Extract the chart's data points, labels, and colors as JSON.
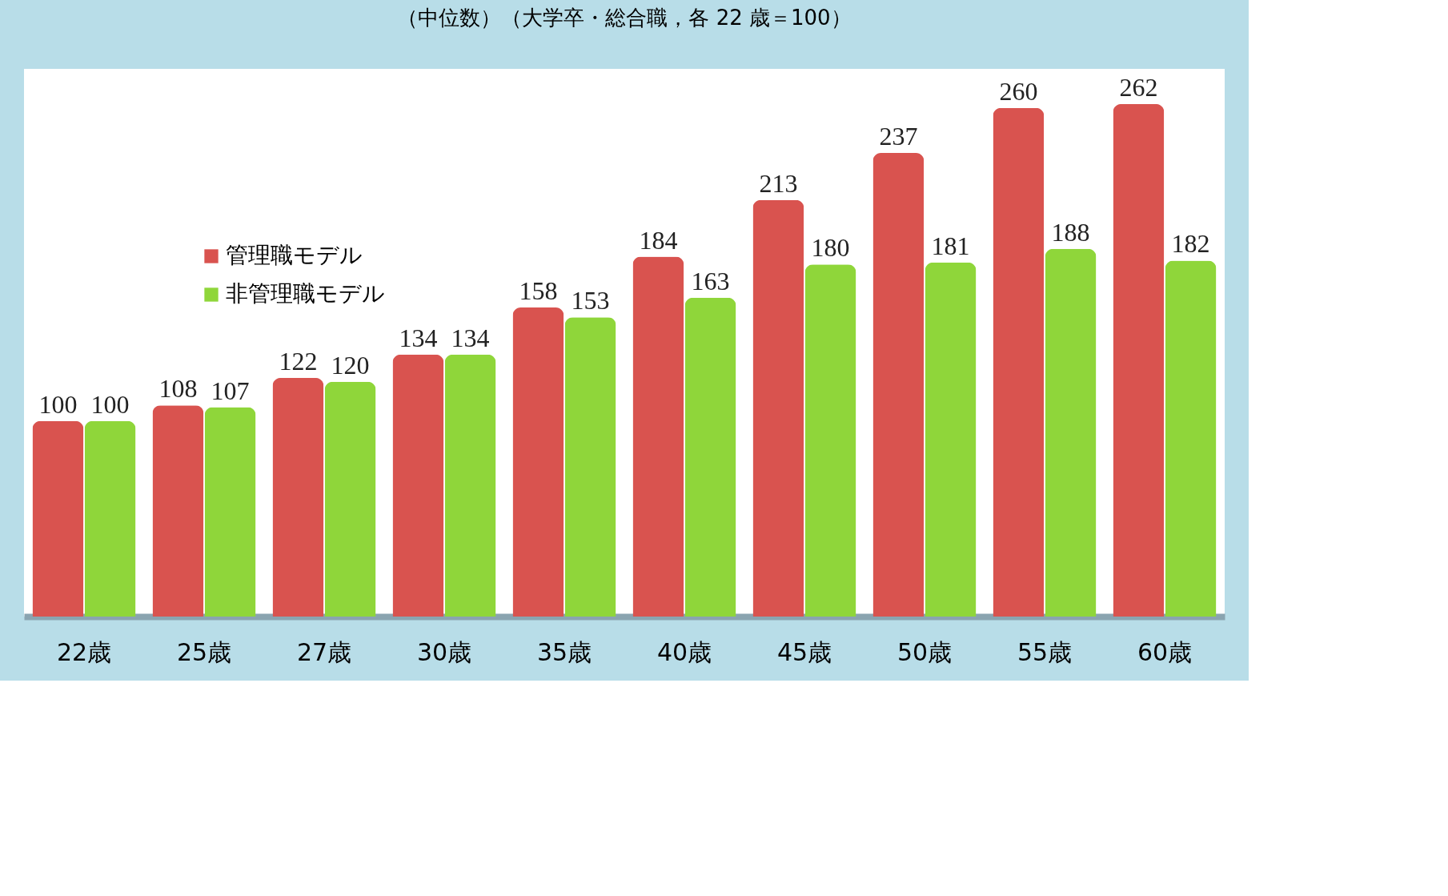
{
  "chart_data": {
    "type": "bar",
    "title": "（中位数）（大学卒・総合職，各 22 歳＝100）",
    "categories": [
      "22歳",
      "25歳",
      "27歳",
      "30歳",
      "35歳",
      "40歳",
      "45歳",
      "50歳",
      "55歳",
      "60歳"
    ],
    "series": [
      {
        "name": "管理職モデル",
        "color": "#d9534f",
        "values": [
          100,
          108,
          122,
          134,
          158,
          184,
          213,
          237,
          260,
          262
        ]
      },
      {
        "name": "非管理職モデル",
        "color": "#8fd63a",
        "values": [
          100,
          107,
          120,
          134,
          153,
          163,
          180,
          181,
          188,
          182
        ]
      }
    ],
    "data_labels": true,
    "legend": "top left",
    "grid": false
  }
}
